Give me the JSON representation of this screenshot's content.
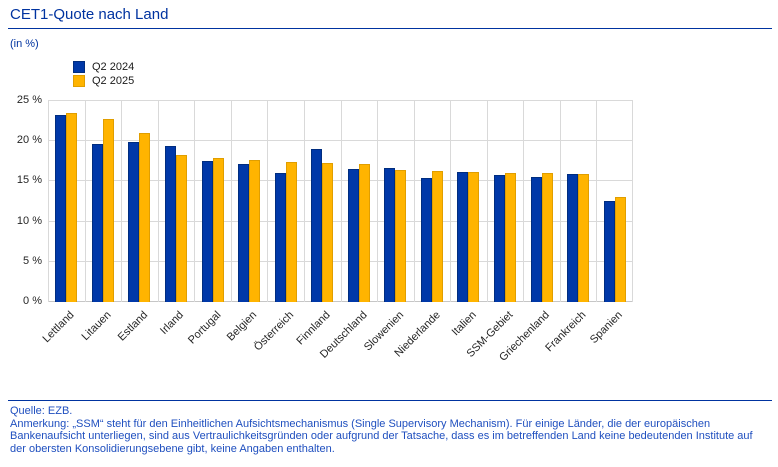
{
  "page": {
    "title": "CET1-Quote nach Land",
    "unit_label": "(in %)"
  },
  "colors": {
    "accent_blue": "#0033a0",
    "bar_blue": "#0038a8",
    "bar_blue_border": "#002d7f",
    "bar_yellow": "#ffb400",
    "bar_yellow_border": "#e09e00",
    "gridline": "#d9d9d9",
    "footer_text": "#1f4fbf"
  },
  "chart_data": {
    "type": "bar",
    "title": "CET1-Quote nach Land",
    "xlabel": "",
    "ylabel": "in %",
    "ylim": [
      0,
      25
    ],
    "grid": true,
    "legend_position": "top-left",
    "categories": [
      "Lettland",
      "Litauen",
      "Estland",
      "Irland",
      "Portugal",
      "Belgien",
      "Österreich",
      "Finnland",
      "Deutschland",
      "Slowenien",
      "Niederlande",
      "Italien",
      "SSM-Gebiet",
      "Griechenland",
      "Frankreich",
      "Spanien"
    ],
    "series": [
      {
        "name": "Q2 2024",
        "color": "#0038a8",
        "border": "#002d7f",
        "values": [
          23.3,
          19.6,
          19.9,
          19.4,
          17.5,
          17.2,
          16.1,
          19.0,
          16.5,
          16.7,
          15.4,
          16.2,
          15.8,
          15.5,
          15.9,
          12.6
        ]
      },
      {
        "name": "Q2 2025",
        "color": "#ffb400",
        "border": "#e09e00",
        "values": [
          23.5,
          22.8,
          21.0,
          18.3,
          17.9,
          17.6,
          17.4,
          17.3,
          17.2,
          16.4,
          16.3,
          16.2,
          16.1,
          16.0,
          15.9,
          13.1
        ]
      }
    ],
    "yticks": [
      {
        "value": 0,
        "label": "0 %"
      },
      {
        "value": 5,
        "label": "5 %"
      },
      {
        "value": 10,
        "label": "10 %"
      },
      {
        "value": 15,
        "label": "15 %"
      },
      {
        "value": 20,
        "label": "20 %"
      },
      {
        "value": 25,
        "label": "25 %"
      }
    ]
  },
  "footer": {
    "source": "Quelle: EZB.",
    "note": "Anmerkung: „SSM“ steht für den Einheitlichen Aufsichtsmechanismus (Single Supervisory Mechanism). Für einige Länder, die der europäischen Bankenaufsicht unterliegen, sind aus Vertraulichkeitsgründen oder aufgrund der Tatsache, dass es im betreffenden Land keine bedeutenden Institute auf der obersten Konsolidierungsebene gibt, keine Angaben enthalten."
  }
}
